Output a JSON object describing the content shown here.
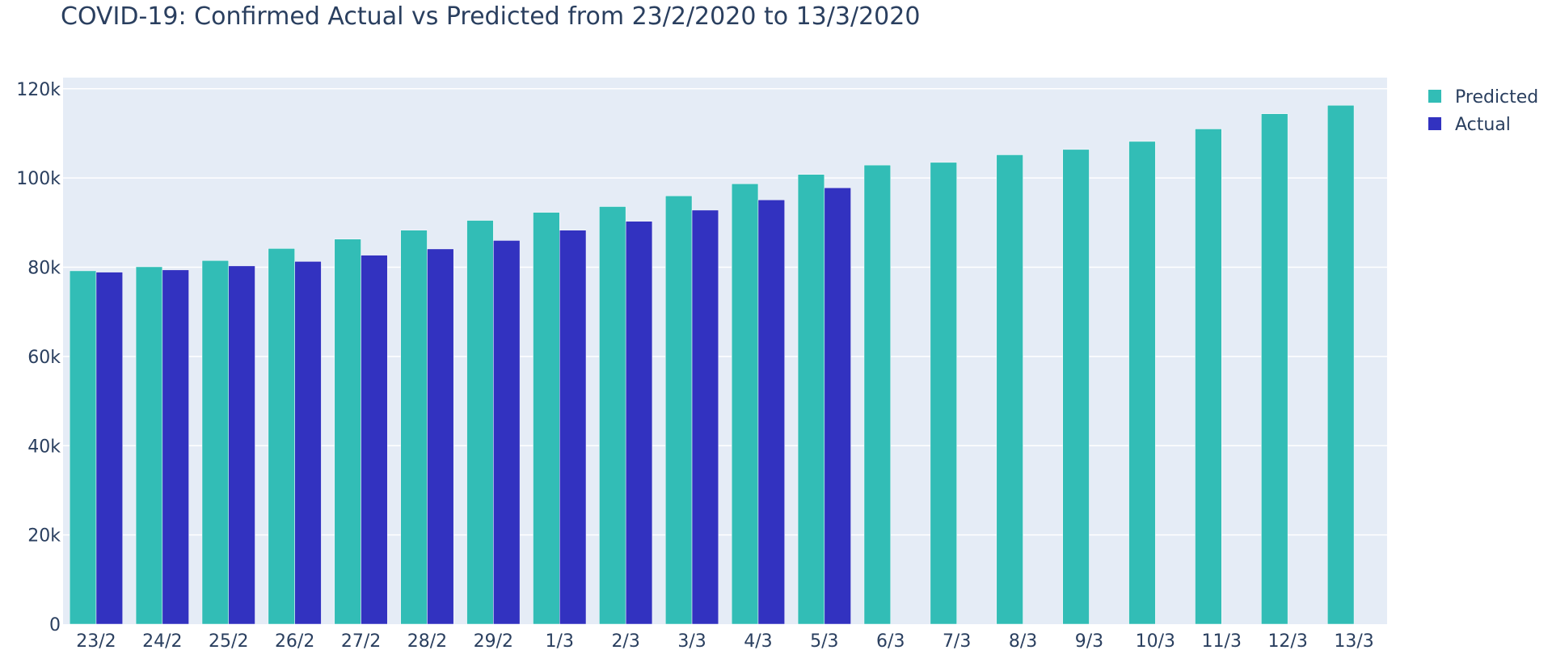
{
  "chart_data": {
    "type": "bar",
    "title": "COVID-19: Confirmed Actual vs Predicted from 23/2/2020 to 13/3/2020",
    "xlabel": "",
    "ylabel": "",
    "categories": [
      "23/2",
      "24/2",
      "25/2",
      "26/2",
      "27/2",
      "28/2",
      "29/2",
      "1/3",
      "2/3",
      "3/3",
      "4/3",
      "5/3",
      "6/3",
      "7/3",
      "8/3",
      "9/3",
      "10/3",
      "11/3",
      "12/3",
      "13/3"
    ],
    "series": [
      {
        "name": "Predicted",
        "color": "#32bdb6",
        "values": [
          79200,
          80100,
          81500,
          84200,
          86300,
          88300,
          90500,
          92300,
          93600,
          96000,
          98700,
          100800,
          102900,
          103500,
          105200,
          106400,
          108200,
          111000,
          114400,
          116300
        ]
      },
      {
        "name": "Actual",
        "color": "#3232c0",
        "values": [
          78900,
          79400,
          80300,
          81300,
          82700,
          84100,
          86000,
          88300,
          90300,
          92800,
          95100,
          97800,
          null,
          null,
          null,
          null,
          null,
          null,
          null,
          null
        ]
      }
    ],
    "ylim": [
      0,
      122500
    ],
    "yticks": [
      0,
      20000,
      40000,
      60000,
      80000,
      100000,
      120000
    ],
    "ytick_labels": [
      "0",
      "20k",
      "40k",
      "60k",
      "80k",
      "100k",
      "120k"
    ],
    "grid": true,
    "plot_background": "#e5ecf6",
    "legend_position": "top-right"
  }
}
